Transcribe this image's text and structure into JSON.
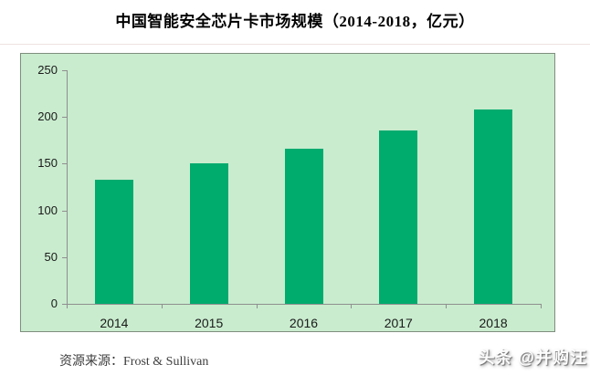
{
  "source": {
    "label": "资源来源：Frost & Sullivan"
  },
  "watermark": {
    "text": "头条 @并购汪"
  },
  "colors": {
    "bar": "#00ab6e",
    "plot_bg": "#c9ecce",
    "chart_border": "#7e8e7e",
    "axis": "#8f8f8f",
    "tick_text": "#1a1a1a"
  },
  "chart_data": {
    "type": "bar",
    "title": "中国智能安全芯片卡市场规模（2014-2018，亿元）",
    "categories": [
      "2014",
      "2015",
      "2016",
      "2017",
      "2018"
    ],
    "values": [
      133,
      150,
      166,
      186,
      208
    ],
    "xlabel": "",
    "ylabel": "",
    "ylim": [
      0,
      250
    ],
    "yticks": [
      0,
      50,
      100,
      150,
      200,
      250
    ],
    "grid": false,
    "legend_position": "none"
  }
}
